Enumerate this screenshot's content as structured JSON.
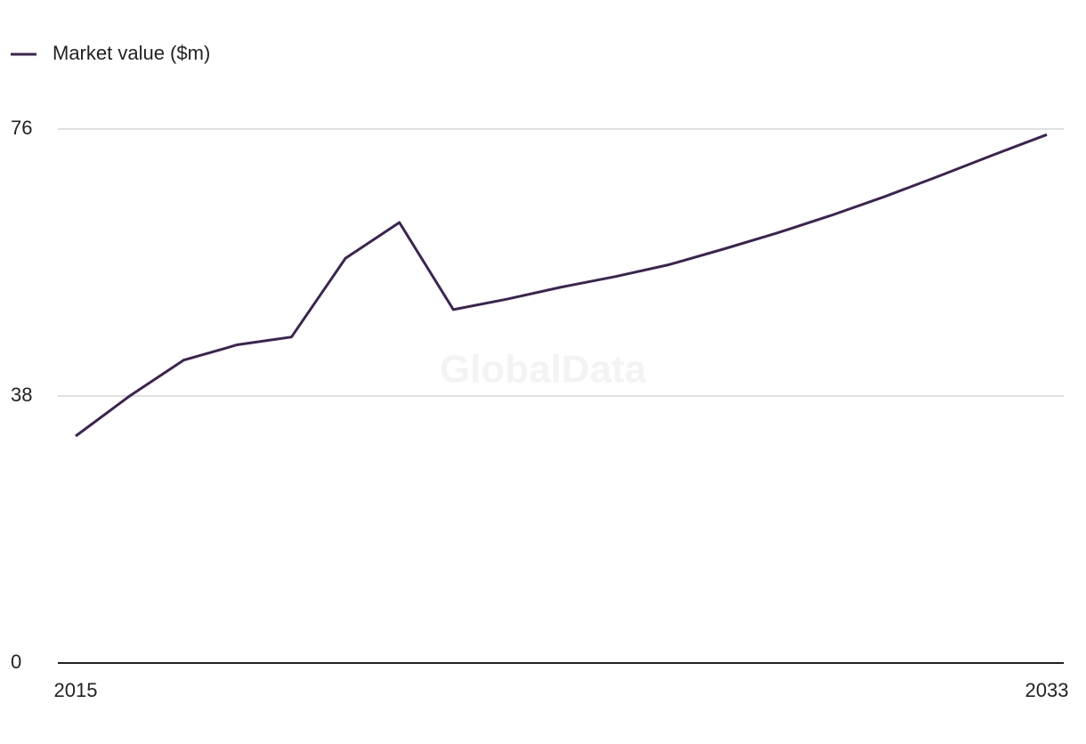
{
  "chart_data": {
    "type": "line",
    "watermark": "GlobalData",
    "x": [
      2015,
      2016,
      2017,
      2018,
      2019,
      2020,
      2021,
      2022,
      2023,
      2024,
      2025,
      2026,
      2027,
      2028,
      2029,
      2030,
      2031,
      2032,
      2033
    ],
    "series": [
      {
        "name": "Market value ($m)",
        "color": "#3b2452",
        "values": [
          32.3,
          38.0,
          43.1,
          45.3,
          46.4,
          57.6,
          62.7,
          50.3,
          51.8,
          53.5,
          55.0,
          56.7,
          58.9,
          61.2,
          63.7,
          66.4,
          69.3,
          72.3,
          75.2
        ]
      }
    ],
    "xlim": [
      2015,
      2033
    ],
    "xticks": [
      2015,
      2033
    ],
    "ylim": [
      0,
      76
    ],
    "yticks": [
      0,
      38,
      76
    ],
    "grid": true,
    "legend": "top-left"
  }
}
